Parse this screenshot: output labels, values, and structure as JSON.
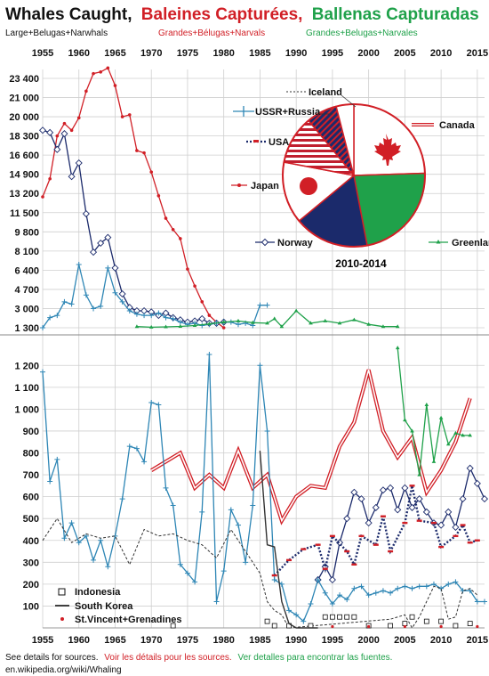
{
  "header": {
    "title_black": "Whales Caught,",
    "title_red": "Baleines Capturées,",
    "title_green": "Ballenas Capturadas",
    "sub_en": "Large+Belugas+Narwhals",
    "sub_fr": "Grandes+Bélugas+Narvals",
    "sub_es": "Grandes+Belugas+Narvales"
  },
  "colors": {
    "ussr": "#2e86b5",
    "japan": "#d11f26",
    "norway": "#1b2a6b",
    "greenland": "#1fa14a",
    "canada": "#d11f26",
    "usa": "#c01f2f",
    "iceland": "#333333",
    "grid": "#cfcfcf"
  },
  "footer": {
    "en": "See details for sources.",
    "fr": "Voir les détails pour  les sources.",
    "es": "Ver detalles para encontrar las fuentes.",
    "url": "en.wikipedia.org/wiki/Whaling"
  },
  "chart_data": {
    "type": "line",
    "title": "Whales Caught, Baleines Capturées, Ballenas Capturadas",
    "x_ticks": [
      1955,
      1960,
      1965,
      1970,
      1975,
      1980,
      1985,
      1990,
      1995,
      2000,
      2005,
      2010,
      2015
    ],
    "xlim": [
      1955,
      2016
    ],
    "upper_panel": {
      "y_ticks": [
        "23 400",
        "21 000",
        "20 000",
        "18 300",
        "16 600",
        "14 900",
        "13 200",
        "11 500",
        "9 800",
        "8 100",
        "6 400",
        "4 700",
        "3 000",
        "1 300"
      ],
      "ylim": [
        1300,
        25000
      ]
    },
    "lower_panel": {
      "y_ticks": [
        "1 200",
        "1 100",
        "1 000",
        "900",
        "800",
        "700",
        "600",
        "500",
        "400",
        "300",
        "200",
        "100"
      ],
      "ylim": [
        0,
        1250
      ]
    },
    "series": [
      {
        "name": "Japan",
        "key": "japan",
        "x": [
          1955,
          1956,
          1957,
          1958,
          1959,
          1960,
          1961,
          1962,
          1963,
          1964,
          1965,
          1966,
          1967,
          1968,
          1969,
          1970,
          1971,
          1972,
          1973,
          1974,
          1975,
          1976,
          1977,
          1978,
          1979,
          1980
        ],
        "y": [
          12900,
          14500,
          18300,
          19400,
          18800,
          19900,
          21800,
          24000,
          24200,
          24700,
          22500,
          20000,
          20100,
          17000,
          16800,
          15100,
          13000,
          11000,
          10000,
          9200,
          6500,
          5000,
          3600,
          2400,
          1800,
          1300
        ]
      },
      {
        "name": "Norway",
        "key": "norway",
        "x": [
          1955,
          1956,
          1957,
          1958,
          1959,
          1960,
          1961,
          1962,
          1963,
          1964,
          1965,
          1966,
          1967,
          1968,
          1969,
          1970,
          1971,
          1972,
          1973,
          1974,
          1975,
          1976,
          1977,
          1978,
          1979,
          1980
        ],
        "y": [
          18800,
          18600,
          17100,
          18500,
          14700,
          15900,
          11400,
          8000,
          8800,
          9300,
          6600,
          4300,
          3100,
          2800,
          2800,
          2700,
          2400,
          2600,
          2200,
          2000,
          1800,
          1900,
          2100,
          1700,
          1700,
          1800
        ]
      },
      {
        "name": "USSR+Russia",
        "key": "ussr",
        "x": [
          1955,
          1956,
          1957,
          1958,
          1959,
          1960,
          1961,
          1962,
          1963,
          1964,
          1965,
          1966,
          1967,
          1968,
          1969,
          1970,
          1971,
          1972,
          1973,
          1974,
          1975,
          1976,
          1977,
          1978,
          1979,
          1980,
          1981,
          1982,
          1983,
          1984,
          1985,
          1986
        ],
        "y": [
          1300,
          2200,
          2400,
          3600,
          3400,
          6900,
          4200,
          3000,
          3200,
          6600,
          4400,
          3600,
          2800,
          2500,
          2400,
          2400,
          2600,
          2200,
          2100,
          1800,
          1600,
          1700,
          1500,
          1600,
          1700,
          1800,
          1800,
          1600,
          1700,
          1500,
          3300,
          3300
        ]
      },
      {
        "name": "Greenland",
        "key": "greenland",
        "x": [
          1968,
          1970,
          1972,
          1974,
          1976,
          1978,
          1980,
          1982,
          1984,
          1986,
          1987,
          1988,
          1990,
          1992,
          1994,
          1996,
          1998,
          2000,
          2002,
          2004
        ],
        "y": [
          1400,
          1350,
          1380,
          1420,
          1500,
          1650,
          1800,
          1900,
          1750,
          1700,
          2100,
          1400,
          2800,
          1700,
          1900,
          1700,
          2000,
          1600,
          1400,
          1400
        ]
      },
      {
        "name": "Canada",
        "key": "canada",
        "x": [
          1970,
          1972,
          1974,
          1976,
          1978,
          1980,
          1982,
          1984,
          1986,
          1988,
          1990,
          1992,
          1994,
          1996,
          1998,
          2000,
          2002,
          2004,
          2006,
          2008,
          2010,
          2012,
          2014
        ],
        "y": [
          720,
          760,
          800,
          640,
          700,
          640,
          810,
          640,
          700,
          490,
          600,
          650,
          640,
          830,
          940,
          1180,
          900,
          780,
          870,
          620,
          720,
          850,
          1050
        ]
      },
      {
        "name": "Greenland (lower)",
        "key": "greenland",
        "x": [
          2004,
          2005,
          2006,
          2007,
          2008,
          2009,
          2010,
          2011,
          2012,
          2013,
          2014
        ],
        "y": [
          1280,
          950,
          900,
          700,
          1020,
          760,
          960,
          840,
          890,
          880,
          880
        ]
      },
      {
        "name": "Norway (lower)",
        "key": "norway",
        "x": [
          1993,
          1994,
          1995,
          1996,
          1997,
          1998,
          1999,
          2000,
          2001,
          2002,
          2003,
          2004,
          2005,
          2006,
          2007,
          2008,
          2009,
          2010,
          2011,
          2012,
          2013,
          2014,
          2015,
          2016
        ],
        "y": [
          220,
          280,
          220,
          390,
          500,
          620,
          590,
          480,
          550,
          630,
          640,
          540,
          640,
          550,
          590,
          530,
          480,
          470,
          530,
          460,
          590,
          730,
          660,
          590
        ]
      },
      {
        "name": "USSR+Russia (lower)",
        "key": "ussr",
        "x": [
          1955,
          1956,
          1957,
          1958,
          1959,
          1960,
          1961,
          1962,
          1963,
          1964,
          1965,
          1966,
          1967,
          1968,
          1969,
          1970,
          1971,
          1972,
          1973,
          1974,
          1975,
          1976,
          1977,
          1978,
          1979,
          1980,
          1981,
          1982,
          1983,
          1984,
          1985,
          1986,
          1987,
          1988,
          1989,
          1990,
          1991,
          1992,
          1993,
          1994,
          1995,
          1996,
          1997,
          1998,
          1999,
          2000,
          2001,
          2002,
          2003,
          2004,
          2005,
          2006,
          2007,
          2008,
          2009,
          2010,
          2011,
          2012,
          2013,
          2014,
          2015,
          2016
        ],
        "y": [
          1170,
          670,
          770,
          410,
          480,
          390,
          420,
          310,
          400,
          280,
          420,
          590,
          830,
          820,
          760,
          1030,
          1020,
          640,
          560,
          290,
          250,
          210,
          530,
          1250,
          120,
          260,
          540,
          470,
          300,
          560,
          1200,
          900,
          220,
          200,
          80,
          60,
          30,
          110,
          220,
          160,
          110,
          150,
          130,
          180,
          190,
          150,
          160,
          170,
          160,
          180,
          190,
          180,
          190,
          190,
          200,
          180,
          200,
          210,
          170,
          170,
          120,
          120
        ]
      },
      {
        "name": "Iceland",
        "key": "iceland",
        "x": [
          1955,
          1957,
          1959,
          1961,
          1963,
          1965,
          1967,
          1969,
          1971,
          1973,
          1975,
          1977,
          1979,
          1981,
          1983,
          1985,
          1986,
          1987,
          1988,
          1989,
          2003,
          2005,
          2006,
          2007,
          2008,
          2009,
          2010,
          2011,
          2012,
          2013,
          2014,
          2015
        ],
        "y": [
          400,
          500,
          390,
          430,
          410,
          420,
          290,
          450,
          420,
          430,
          400,
          380,
          320,
          450,
          350,
          250,
          120,
          80,
          60,
          0,
          40,
          60,
          0,
          50,
          120,
          190,
          180,
          40,
          50,
          170,
          180,
          150
        ]
      },
      {
        "name": "USA",
        "key": "usa",
        "x": [
          1987,
          1989,
          1991,
          1993,
          1994,
          1995,
          1997,
          1998,
          1999,
          2001,
          2002,
          2003,
          2005,
          2006,
          2007,
          2009,
          2010,
          2012,
          2013,
          2014,
          2015
        ],
        "y": [
          240,
          310,
          360,
          380,
          270,
          420,
          350,
          290,
          420,
          380,
          510,
          350,
          480,
          650,
          490,
          480,
          370,
          420,
          470,
          390,
          400
        ]
      },
      {
        "name": "Indonesia",
        "key": "iceland",
        "x": [
          1973,
          1986,
          1987,
          1989,
          1992,
          1994,
          1995,
          1996,
          1997,
          1998,
          2000,
          2003,
          2005,
          2006,
          2008,
          2010,
          2012,
          2014
        ],
        "y": [
          10,
          30,
          10,
          10,
          10,
          50,
          50,
          50,
          50,
          50,
          10,
          10,
          20,
          50,
          30,
          30,
          10,
          20
        ]
      },
      {
        "name": "South Korea",
        "key": "iceland",
        "x": [
          1985,
          1986,
          1987,
          1988,
          1989,
          1990,
          1991,
          1992,
          1993
        ],
        "y": [
          810,
          380,
          370,
          120,
          20,
          0,
          0,
          0,
          0
        ]
      },
      {
        "name": "St.Vincent+Grenadines",
        "key": "japan",
        "x": [
          1995,
          2000,
          2005,
          2010,
          2015
        ],
        "y": [
          2,
          2,
          2,
          2,
          2
        ]
      }
    ],
    "pie": {
      "title": "2010-2014",
      "slices": [
        {
          "label": "Canada",
          "value": 24.5,
          "color": "#ffffff"
        },
        {
          "label": "Greenland",
          "value": 22.5,
          "color": "#1fa14a"
        },
        {
          "label": "Norway",
          "value": 17,
          "color": "#1b2a6b"
        },
        {
          "label": "Japan",
          "value": 14,
          "color": "#ffffff"
        },
        {
          "label": "USA",
          "value": 11,
          "color": "#c01f2f"
        },
        {
          "label": "USSR+Russia",
          "value": 7,
          "color": "#6a2a7a"
        },
        {
          "label": "Iceland",
          "value": 4,
          "color": "#ffffff"
        }
      ]
    },
    "labels": {
      "iceland": "Iceland",
      "ussr": "USSR+Russia",
      "usa": "USA",
      "japan": "Japan",
      "norway": "Norway",
      "canada": "Canada",
      "greenland": "Greenland",
      "indonesia": "Indonesia",
      "south_korea": "South Korea",
      "stvincent": "St.Vincent+Grenadines"
    }
  }
}
